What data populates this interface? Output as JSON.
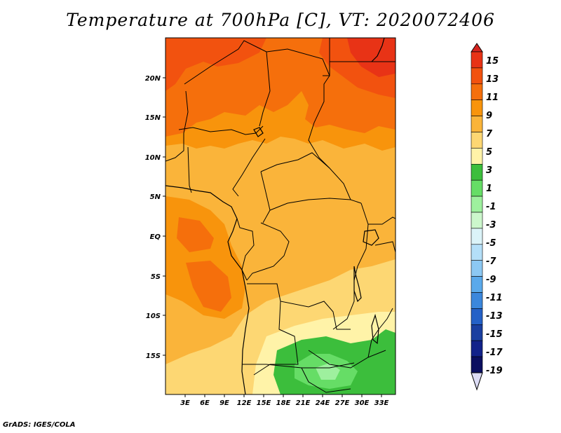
{
  "title": "Temperature at 700hPa [C], VT: 2020072406",
  "credit": "GrADS: IGES/COLA",
  "map": {
    "lon_labels": [
      "3E",
      "6E",
      "9E",
      "12E",
      "15E",
      "18E",
      "21E",
      "24E",
      "27E",
      "30E",
      "33E"
    ],
    "lat_labels": [
      "20N",
      "15N",
      "10N",
      "5N",
      "EQ",
      "5S",
      "10S",
      "15S"
    ]
  },
  "colorbar": {
    "labels": [
      "15",
      "13",
      "11",
      "9",
      "7",
      "5",
      "3",
      "1",
      "-1",
      "-3",
      "-5",
      "-7",
      "-9",
      "-11",
      "-13",
      "-15",
      "-17",
      "-19"
    ],
    "colors": [
      "#e83316",
      "#f2520f",
      "#f56f0c",
      "#f8940c",
      "#fab43a",
      "#fdd773",
      "#fff3a8",
      "#3cbe3c",
      "#66dd66",
      "#9ef09e",
      "#ccf7cc",
      "#dbf3f8",
      "#b4dff8",
      "#8cc8f3",
      "#5aa9eb",
      "#3b87dc",
      "#2461c7",
      "#1a3fa0",
      "#12228a",
      "#0b0f60"
    ],
    "top_arrow_color": "#d4241f",
    "bottom_arrow_color": "#dcdcf5"
  }
}
